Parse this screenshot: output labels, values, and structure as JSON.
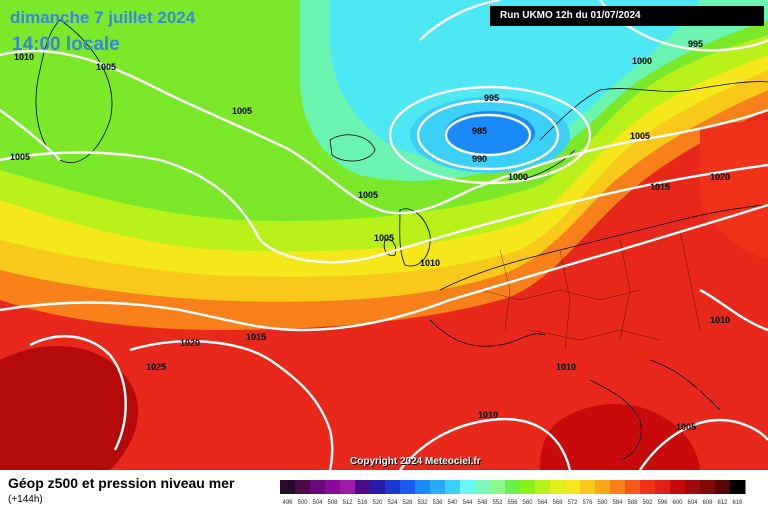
{
  "header": {
    "date": "dimanche 7 juillet 2024",
    "time": "14:00 locale",
    "run": "Run UKMO 12h du 01/07/2024"
  },
  "copyright": "Copyright 2024 Meteociel.fr",
  "footer": {
    "title": "Géop z500 et pression niveau mer",
    "subtitle": "(+144h)"
  },
  "isobar_labels": [
    "1010",
    "1005",
    "1005",
    "1005",
    "995",
    "1000",
    "995",
    "985",
    "990",
    "1000",
    "1005",
    "1005",
    "1015",
    "1020",
    "1005",
    "1010",
    "1015",
    "1020",
    "1025",
    "1010",
    "1010",
    "1010",
    "1005"
  ],
  "legend": {
    "labels": [
      "496",
      "500",
      "504",
      "508",
      "512",
      "516",
      "520",
      "524",
      "528",
      "532",
      "536",
      "540",
      "544",
      "548",
      "552",
      "556",
      "560",
      "564",
      "568",
      "572",
      "576",
      "580",
      "584",
      "588",
      "592",
      "596",
      "600",
      "604",
      "608",
      "612",
      "616"
    ],
    "colors": [
      "#2a0a2a",
      "#4a0a4a",
      "#6a0a7a",
      "#8a0a9a",
      "#a01aaa",
      "#4a0a8a",
      "#2a1aaa",
      "#1a3ad0",
      "#1a5af0",
      "#1a8af8",
      "#2aaaf8",
      "#3ad0f8",
      "#6af4f4",
      "#7af8b8",
      "#8af88a",
      "#6af04a",
      "#8af01a",
      "#b8f01a",
      "#e0f01a",
      "#f8e81a",
      "#f8c81a",
      "#f8a81a",
      "#f8801a",
      "#f85a1a",
      "#f0321a",
      "#e0201a",
      "#c80a0a",
      "#a00a0a",
      "#800a0a",
      "#5a0505",
      "#000000"
    ]
  },
  "colors": {
    "cyan": "#4de8f4",
    "green": "#7ce82a",
    "yellow": "#f4e81a",
    "orange": "#f88a1a",
    "red": "#e8281a",
    "darkred": "#b40a0a",
    "low_center": "#1a8af8"
  }
}
